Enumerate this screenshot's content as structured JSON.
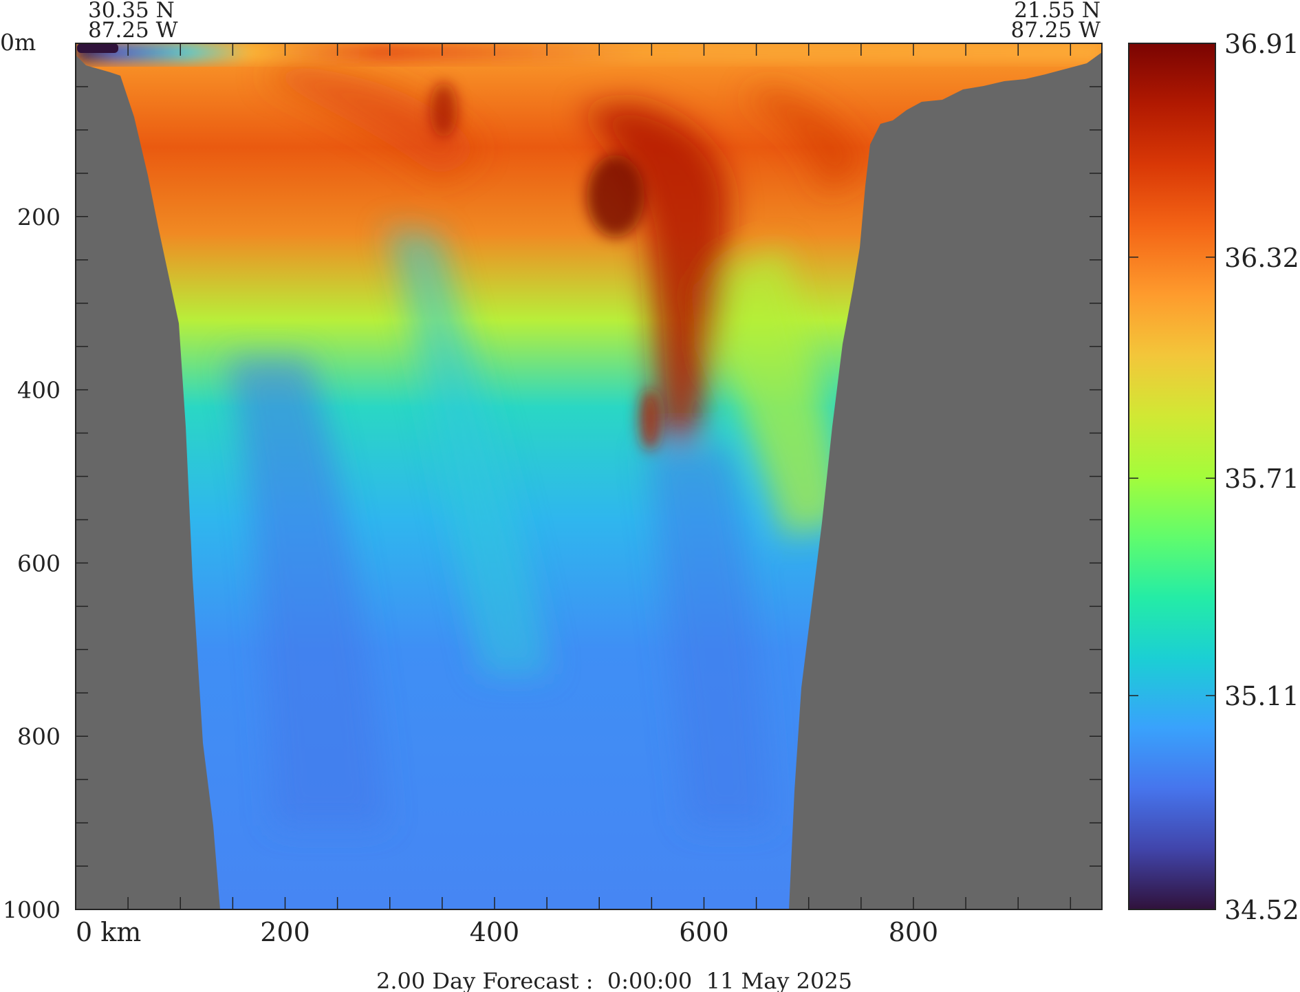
{
  "chart_data": {
    "type": "heatmap",
    "title": "2.00 Day Forecast :  0:00:00  11 May 2025",
    "start_point": {
      "lat": "30.35 N",
      "lon": "87.25 W"
    },
    "end_point": {
      "lat": "21.55 N",
      "lon": "87.25 W"
    },
    "xlabel": "km",
    "ylabel": "m",
    "xlim": [
      0,
      980
    ],
    "ylim": [
      1000,
      0
    ],
    "x_ticks": [
      "0 km",
      "200",
      "400",
      "600",
      "800"
    ],
    "x_tick_values": [
      0,
      200,
      400,
      600,
      800
    ],
    "y_ticks": [
      "0m",
      "200",
      "400",
      "600",
      "800",
      "1000"
    ],
    "y_tick_values": [
      0,
      200,
      400,
      600,
      800,
      1000
    ],
    "colorbar": {
      "min": 34.52,
      "max": 36.91,
      "ticks": [
        "36.91",
        "36.32",
        "35.71",
        "35.11",
        "34.52"
      ],
      "tick_values": [
        36.91,
        36.32,
        35.71,
        35.11,
        34.52
      ],
      "colormap": "turbo"
    },
    "land_color": "#676767",
    "bathymetry_left": [
      [
        0,
        10
      ],
      [
        30,
        20
      ],
      [
        40,
        40
      ],
      [
        60,
        170
      ],
      [
        90,
        270
      ],
      [
        110,
        350
      ],
      [
        130,
        620
      ],
      [
        145,
        1000
      ]
    ],
    "bathymetry_right": [
      [
        680,
        1000
      ],
      [
        690,
        820
      ],
      [
        700,
        700
      ],
      [
        715,
        500
      ],
      [
        735,
        340
      ],
      [
        755,
        180
      ],
      [
        770,
        90
      ],
      [
        810,
        70
      ],
      [
        900,
        30
      ],
      [
        980,
        8
      ]
    ],
    "samples": [
      {
        "x": 10,
        "depth": 3,
        "value": 34.55
      },
      {
        "x": 80,
        "depth": 5,
        "value": 35.05
      },
      {
        "x": 150,
        "depth": 5,
        "value": 35.55
      },
      {
        "x": 250,
        "depth": 20,
        "value": 36.55
      },
      {
        "x": 340,
        "depth": 70,
        "value": 36.75
      },
      {
        "x": 510,
        "depth": 180,
        "value": 36.9
      },
      {
        "x": 560,
        "depth": 350,
        "value": 36.65
      },
      {
        "x": 550,
        "depth": 470,
        "value": 36.55
      },
      {
        "x": 250,
        "depth": 180,
        "value": 36.4
      },
      {
        "x": 100,
        "depth": 120,
        "value": 36.25
      },
      {
        "x": 200,
        "depth": 300,
        "value": 35.8
      },
      {
        "x": 350,
        "depth": 400,
        "value": 35.25
      },
      {
        "x": 300,
        "depth": 650,
        "value": 34.95
      },
      {
        "x": 500,
        "depth": 700,
        "value": 35.05
      },
      {
        "x": 650,
        "depth": 550,
        "value": 35.7
      },
      {
        "x": 700,
        "depth": 300,
        "value": 36.1
      },
      {
        "x": 200,
        "depth": 900,
        "value": 34.9
      },
      {
        "x": 600,
        "depth": 900,
        "value": 34.92
      },
      {
        "x": 800,
        "depth": 20,
        "value": 36.3
      }
    ]
  }
}
